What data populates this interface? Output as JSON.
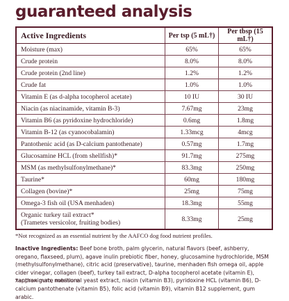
{
  "header": {
    "title": "guaranteed analysis"
  },
  "table": {
    "columns": [
      "Active Ingredients",
      "Per tsp (5 mL†)",
      "Per tbsp (15 mL†)"
    ],
    "rows": [
      [
        "Moisture (max)",
        "65%",
        "65%"
      ],
      [
        "Crude protein",
        "8.0%",
        "8.0%"
      ],
      [
        "Crude protein (2nd line)",
        "1.2%",
        "1.2%"
      ],
      [
        "Crude fat",
        "1.0%",
        "1.0%"
      ],
      [
        "Vitamin E (as d-alpha tocopherol acetate)",
        "10 IU",
        "30 IU"
      ],
      [
        "Niacin (as niacinamide, vitamin B-3)",
        "7.67mg",
        "23mg"
      ],
      [
        "Vitamin B6 (as pyridoxine hydrochloride)",
        "0.6mg",
        "1.8mg"
      ],
      [
        "Vitamin B-12 (as cyanocobalamin)",
        "1.33mcg",
        "4mcg"
      ],
      [
        "Pantothenic acid (as D-calcium pantothenate)",
        "0.57mg",
        "1.7mg"
      ],
      [
        "Glucosamine HCL (from shellfish)*",
        "91.7mg",
        "275mg"
      ],
      [
        "MSM (as methylsulfonylmethane)*",
        "83.3mg",
        "250mg"
      ],
      [
        "Taurine*",
        "60mg",
        "180mg"
      ],
      [
        "Collagen (bovine)*",
        "25mg",
        "75mg"
      ],
      [
        "Omega-3 fish oil (USA menhaden)",
        "18.3mg",
        "55mg"
      ],
      [
        "Organic turkey tail extract*",
        "8.33mg",
        "25mg"
      ]
    ],
    "row_note": "(Trametes versicolor, fruiting bodies)"
  },
  "footnote": "*Not recognized as an essential nutrient by the AAFCO dog food nutrient profiles.",
  "inactive": {
    "label": "Inactive Ingredients:",
    "text": "Beef bone broth,  palm glycerin, natural flavors (beef, ashberry, oregano, flaxseed, plum), agave inulin prebiotic fiber, honey, glucosamine hydrochloride, MSM (methylsulfonylmethane), citric acid (preservative), taurine, menhaden fish omega oil, apple cider vinegar, collagen (beef), turkey tail extract, D-alpha tocopherol acetate (vitamin E), xanthan gum, nutritional yeast extract, niacin (vitamin B3), pyridoxine HCL (vitamin B6), D-calcium pantothenate (vitamin B5), folic acid (vitamin B9), vitamin B12 supplement, gum arabic."
  },
  "approx_note": "*approximate measure"
}
